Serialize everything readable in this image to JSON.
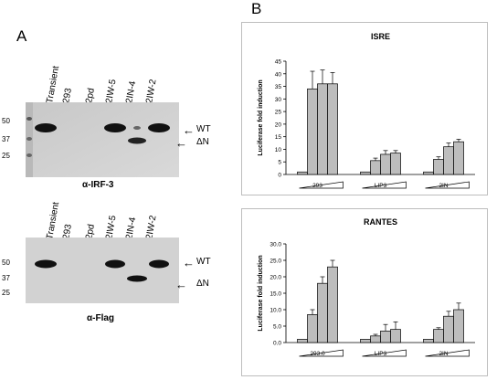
{
  "panel_a": {
    "letter": "A",
    "lanes": [
      "Transient",
      "293",
      "2pd",
      "2IW-5",
      "2IN-4",
      "2IW-2"
    ],
    "blot_top": {
      "caption": "α-IRF-3",
      "markers": [
        "50",
        "37",
        "25"
      ],
      "labels": {
        "wt": "WT",
        "dn": "ΔN"
      }
    },
    "blot_bottom": {
      "caption": "α-Flag",
      "markers": [
        "50",
        "37",
        "25"
      ],
      "labels": {
        "wt": "WT",
        "dn": "ΔN"
      }
    }
  },
  "panel_b": {
    "letter": "B"
  },
  "chart_data": [
    {
      "type": "bar",
      "title": "ISRE",
      "ylabel": "Luciferase fold induction",
      "ylim": [
        0,
        45
      ],
      "yticks": [
        "0",
        "5",
        "10",
        "15",
        "20",
        "25",
        "30",
        "35",
        "40",
        "45"
      ],
      "groups": [
        {
          "label": "293",
          "values": [
            1,
            34,
            36,
            36
          ],
          "errors": [
            0,
            7,
            5.5,
            4.5
          ]
        },
        {
          "label": "LIP3",
          "values": [
            1,
            5.5,
            8,
            8.5
          ],
          "errors": [
            0,
            1,
            1.5,
            1
          ]
        },
        {
          "label": "2IN",
          "values": [
            1,
            6,
            11,
            13
          ],
          "errors": [
            0,
            1,
            1.5,
            1
          ]
        }
      ]
    },
    {
      "type": "bar",
      "title": "RANTES",
      "ylabel": "Luciferase fold induction",
      "ylim": [
        0,
        30
      ],
      "yticks": [
        "0.0",
        "5.0",
        "10.0",
        "15.0",
        "20.0",
        "25.0",
        "30.0"
      ],
      "groups": [
        {
          "label": "293.0",
          "values": [
            1,
            8.5,
            18,
            23
          ],
          "errors": [
            0,
            1.5,
            2,
            2
          ]
        },
        {
          "label": "LIP3",
          "values": [
            1,
            2,
            3.5,
            4
          ],
          "errors": [
            0,
            0.5,
            2,
            2.3
          ]
        },
        {
          "label": "2IN",
          "values": [
            1,
            4,
            8,
            10
          ],
          "errors": [
            0,
            0.5,
            1.5,
            2
          ]
        }
      ]
    }
  ]
}
